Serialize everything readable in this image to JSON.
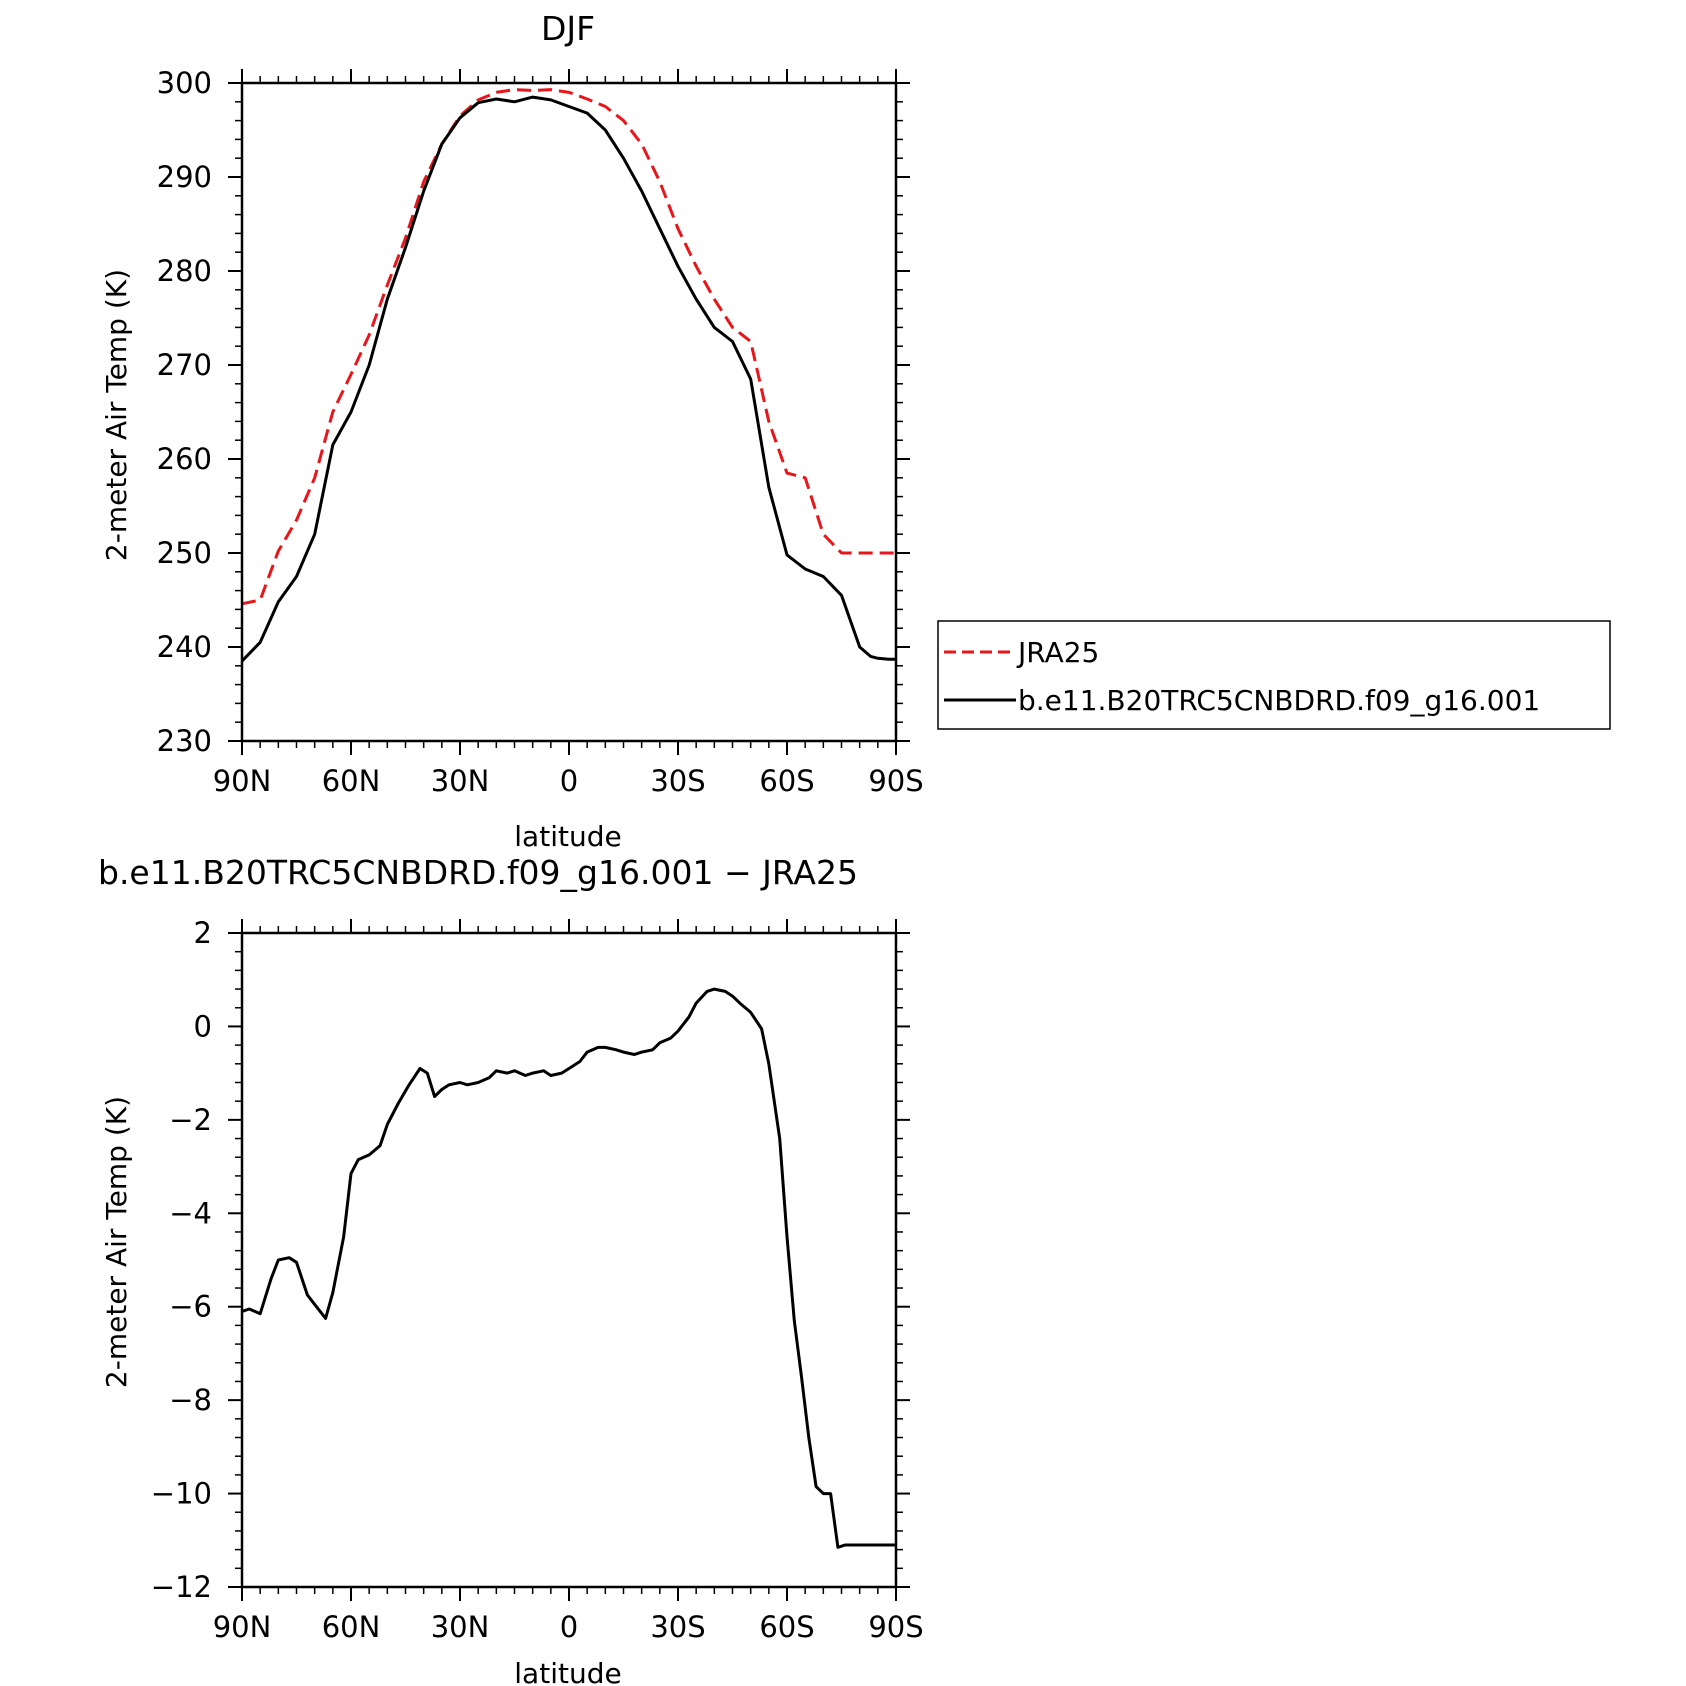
{
  "colors": {
    "obs": "#e8161a",
    "model": "#000000"
  },
  "chart_data": [
    {
      "type": "line",
      "title": "DJF",
      "xlabel": "latitude",
      "ylabel": "2-meter Air Temp (K)",
      "xlim": [
        90,
        -90
      ],
      "ylim": [
        230,
        300
      ],
      "xticks": [
        90,
        60,
        30,
        0,
        -30,
        -60,
        -90
      ],
      "xtick_labels": [
        "90N",
        "60N",
        "30N",
        "0",
        "30S",
        "60S",
        "90S"
      ],
      "yticks": [
        230,
        240,
        250,
        260,
        270,
        280,
        290,
        300
      ],
      "ytick_labels": [
        "230",
        "240",
        "250",
        "260",
        "270",
        "280",
        "290",
        "300"
      ],
      "grid": false,
      "legend_position": "right",
      "series": [
        {
          "name": "JRA25",
          "style": "dashed",
          "color": "#e8161a",
          "x": [
            90,
            85,
            80,
            75,
            70,
            65,
            60,
            55,
            50,
            45,
            40,
            35,
            30,
            25,
            20,
            15,
            10,
            5,
            0,
            -5,
            -10,
            -15,
            -20,
            -25,
            -30,
            -35,
            -40,
            -45,
            -50,
            -55,
            -60,
            -65,
            -70,
            -75,
            -80,
            -83,
            -87,
            -90
          ],
          "y": [
            244.6,
            245.0,
            250.2,
            253.5,
            258.0,
            265.0,
            269.0,
            273.2,
            278.5,
            283.5,
            289.5,
            293.5,
            296.5,
            298.2,
            299.0,
            299.3,
            299.2,
            299.3,
            299.0,
            298.3,
            297.5,
            296.0,
            293.5,
            289.5,
            284.5,
            280.5,
            277.0,
            274.0,
            272.5,
            264.0,
            258.5,
            258.0,
            252.0,
            250.0,
            250.0,
            250.0,
            250.0,
            250.0
          ]
        },
        {
          "name": "b.e11.B20TRC5CNBDRD.f09_g16.001",
          "style": "solid",
          "color": "#000000",
          "x": [
            90,
            85,
            80,
            75,
            70,
            65,
            60,
            55,
            50,
            45,
            40,
            35,
            30,
            25,
            20,
            15,
            10,
            5,
            0,
            -5,
            -10,
            -15,
            -20,
            -25,
            -30,
            -35,
            -40,
            -45,
            -50,
            -55,
            -60,
            -65,
            -70,
            -75,
            -80,
            -83,
            -85,
            -88,
            -90
          ],
          "y": [
            238.5,
            240.5,
            244.8,
            247.5,
            252.0,
            261.5,
            265.0,
            270.0,
            277.0,
            282.5,
            288.5,
            293.5,
            296.3,
            297.9,
            298.3,
            298.0,
            298.5,
            298.2,
            297.5,
            296.8,
            295.0,
            292.0,
            288.5,
            284.5,
            280.5,
            277.0,
            274.0,
            272.5,
            268.5,
            257.0,
            249.8,
            248.3,
            247.5,
            245.5,
            240.0,
            239.0,
            238.8,
            238.7,
            238.7
          ]
        }
      ]
    },
    {
      "type": "line",
      "title": "b.e11.B20TRC5CNBDRD.f09_g16.001 − JRA25",
      "xlabel": "latitude",
      "ylabel": "2-meter Air Temp (K)",
      "xlim": [
        90,
        -90
      ],
      "ylim": [
        -12,
        2
      ],
      "xticks": [
        90,
        60,
        30,
        0,
        -30,
        -60,
        -90
      ],
      "xtick_labels": [
        "90N",
        "60N",
        "30N",
        "0",
        "30S",
        "60S",
        "90S"
      ],
      "yticks": [
        -12,
        -10,
        -8,
        -6,
        -4,
        -2,
        0,
        2
      ],
      "ytick_labels": [
        "−12",
        "−10",
        "−8",
        "−6",
        "−4",
        "−2",
        "0",
        "2"
      ],
      "grid": false,
      "series": [
        {
          "style": "solid",
          "color": "#000000",
          "x": [
            90,
            88,
            85,
            82,
            80,
            77,
            75,
            72,
            70,
            67,
            65,
            62,
            60,
            58,
            55,
            52,
            50,
            47,
            44,
            41,
            39,
            37,
            35,
            33,
            30,
            28,
            25,
            22,
            20,
            17,
            15,
            12,
            10,
            7,
            5,
            2,
            0,
            -3,
            -5,
            -8,
            -10,
            -13,
            -15,
            -18,
            -20,
            -23,
            -25,
            -28,
            -30,
            -33,
            -35,
            -38,
            -40,
            -43,
            -45,
            -47,
            -50,
            -53,
            -55,
            -58,
            -60,
            -62,
            -64,
            -66,
            -68,
            -70,
            -72,
            -74,
            -76,
            -78,
            -80,
            -82,
            -84,
            -86,
            -88,
            -90
          ],
          "y": [
            -6.1,
            -6.05,
            -6.15,
            -5.4,
            -5.0,
            -4.95,
            -5.05,
            -5.75,
            -5.95,
            -6.25,
            -5.7,
            -4.5,
            -3.15,
            -2.85,
            -2.75,
            -2.55,
            -2.1,
            -1.65,
            -1.25,
            -0.9,
            -1.0,
            -1.5,
            -1.35,
            -1.25,
            -1.2,
            -1.25,
            -1.2,
            -1.1,
            -0.95,
            -1.0,
            -0.95,
            -1.05,
            -1.0,
            -0.95,
            -1.05,
            -1.0,
            -0.9,
            -0.75,
            -0.55,
            -0.45,
            -0.45,
            -0.5,
            -0.55,
            -0.6,
            -0.55,
            -0.5,
            -0.35,
            -0.25,
            -0.1,
            0.2,
            0.5,
            0.75,
            0.8,
            0.75,
            0.65,
            0.5,
            0.3,
            -0.05,
            -0.8,
            -2.4,
            -4.5,
            -6.3,
            -7.5,
            -8.8,
            -9.85,
            -10.0,
            -10.0,
            -11.15,
            -11.1,
            -11.1,
            -11.1,
            -11.1,
            -11.1,
            -11.1,
            -11.1,
            -11.1
          ]
        }
      ]
    }
  ]
}
